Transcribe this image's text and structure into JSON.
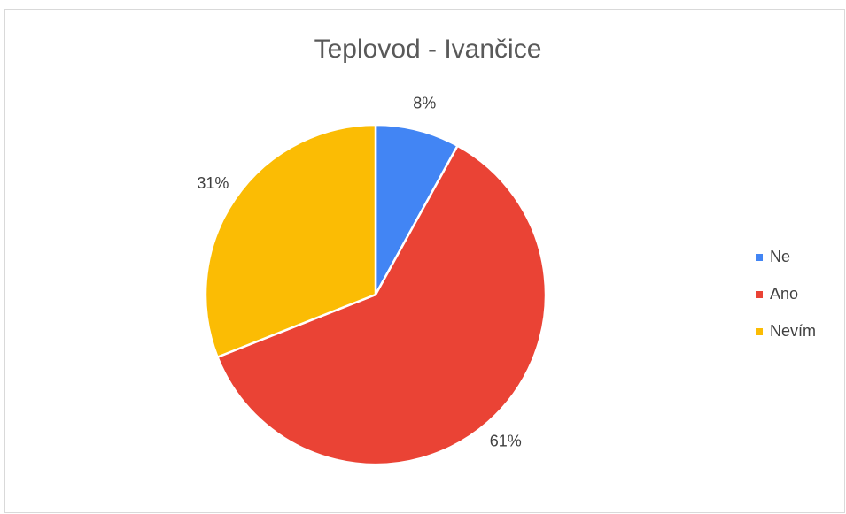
{
  "chart_data": {
    "type": "pie",
    "title": "Teplovod - Ivančice",
    "categories": [
      "Ne",
      "Ano",
      "Nevím"
    ],
    "values": [
      8,
      61,
      31
    ],
    "value_labels": [
      "8%",
      "61%",
      "31%"
    ],
    "colors": [
      "#4285f4",
      "#ea4335",
      "#fbbc04"
    ],
    "legend": "right"
  }
}
